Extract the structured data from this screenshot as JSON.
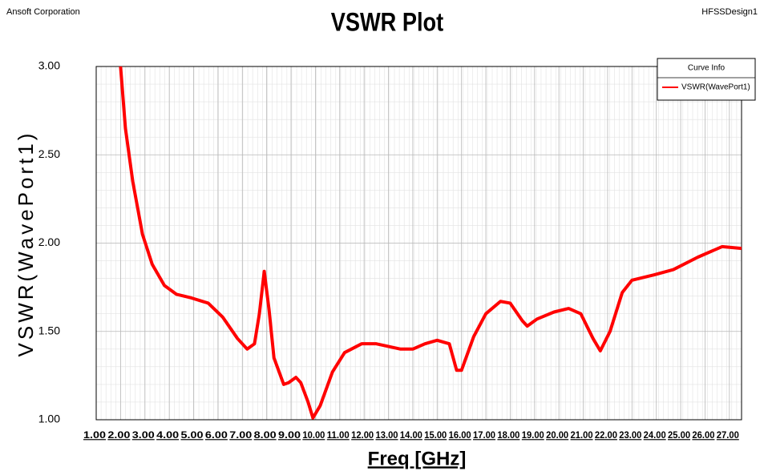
{
  "header_left": "Ansoft Corporation",
  "header_right": "HFSSDesign1",
  "chart_data": {
    "type": "line",
    "title": "VSWR Plot",
    "xlabel": "Freq [GHz]",
    "ylabel": "VSWR(WavePort1)",
    "legend_title": "Curve Info",
    "legend": "upper right",
    "grid": true,
    "x": [
      2.0,
      2.2,
      2.5,
      2.9,
      3.3,
      3.8,
      4.3,
      4.9,
      5.6,
      6.2,
      6.8,
      7.2,
      7.5,
      7.7,
      7.9,
      8.1,
      8.3,
      8.7,
      8.9,
      9.2,
      9.4,
      9.7,
      9.9,
      10.2,
      10.7,
      11.2,
      11.9,
      12.5,
      13.5,
      14.0,
      14.5,
      15.0,
      15.5,
      15.8,
      16.0,
      16.5,
      17.0,
      17.6,
      18.0,
      18.5,
      18.7,
      19.1,
      19.8,
      20.4,
      20.9,
      21.4,
      21.7,
      22.1,
      22.6,
      23.0,
      23.9,
      24.7,
      25.7,
      26.7,
      27.5
    ],
    "series": [
      {
        "name": "VSWR(WavePort1)",
        "color": "#ff0000",
        "values": [
          3.0,
          2.65,
          2.35,
          2.05,
          1.88,
          1.76,
          1.71,
          1.69,
          1.66,
          1.58,
          1.46,
          1.4,
          1.43,
          1.6,
          1.84,
          1.62,
          1.35,
          1.2,
          1.21,
          1.24,
          1.21,
          1.1,
          1.01,
          1.08,
          1.27,
          1.38,
          1.43,
          1.43,
          1.4,
          1.4,
          1.43,
          1.45,
          1.43,
          1.28,
          1.28,
          1.47,
          1.6,
          1.67,
          1.66,
          1.56,
          1.53,
          1.57,
          1.61,
          1.63,
          1.6,
          1.46,
          1.39,
          1.5,
          1.72,
          1.79,
          1.82,
          1.85,
          1.92,
          1.98,
          1.97
        ]
      }
    ],
    "xlim": [
      1,
      27.5
    ],
    "ylim": [
      1,
      3
    ],
    "xticks": [
      {
        "value": 1,
        "label": "1.00"
      },
      {
        "value": 2,
        "label": "2.00"
      },
      {
        "value": 3,
        "label": "3.00"
      },
      {
        "value": 4,
        "label": "4.00"
      },
      {
        "value": 5,
        "label": "5.00"
      },
      {
        "value": 6,
        "label": "6.00"
      },
      {
        "value": 7,
        "label": "7.00"
      },
      {
        "value": 8,
        "label": "8.00"
      },
      {
        "value": 9,
        "label": "9.00"
      },
      {
        "value": 10,
        "label": "10.00"
      },
      {
        "value": 11,
        "label": "11.00"
      },
      {
        "value": 12,
        "label": "12.00"
      },
      {
        "value": 13,
        "label": "13.00"
      },
      {
        "value": 14,
        "label": "14.00"
      },
      {
        "value": 15,
        "label": "15.00"
      },
      {
        "value": 16,
        "label": "16.00"
      },
      {
        "value": 17,
        "label": "17.00"
      },
      {
        "value": 18,
        "label": "18.00"
      },
      {
        "value": 19,
        "label": "19.00"
      },
      {
        "value": 20,
        "label": "20.00"
      },
      {
        "value": 21,
        "label": "21.00"
      },
      {
        "value": 22,
        "label": "22.00"
      },
      {
        "value": 23,
        "label": "23.00"
      },
      {
        "value": 24,
        "label": "24.00"
      },
      {
        "value": 25,
        "label": "25.00"
      },
      {
        "value": 26,
        "label": "26.00"
      },
      {
        "value": 27,
        "label": "27.00"
      }
    ],
    "yticks": [
      {
        "value": 1,
        "label": "1.00"
      },
      {
        "value": 1.5,
        "label": "1.50"
      },
      {
        "value": 2,
        "label": "2.00"
      },
      {
        "value": 2.5,
        "label": "2.50"
      },
      {
        "value": 3,
        "label": "3.00"
      }
    ]
  }
}
